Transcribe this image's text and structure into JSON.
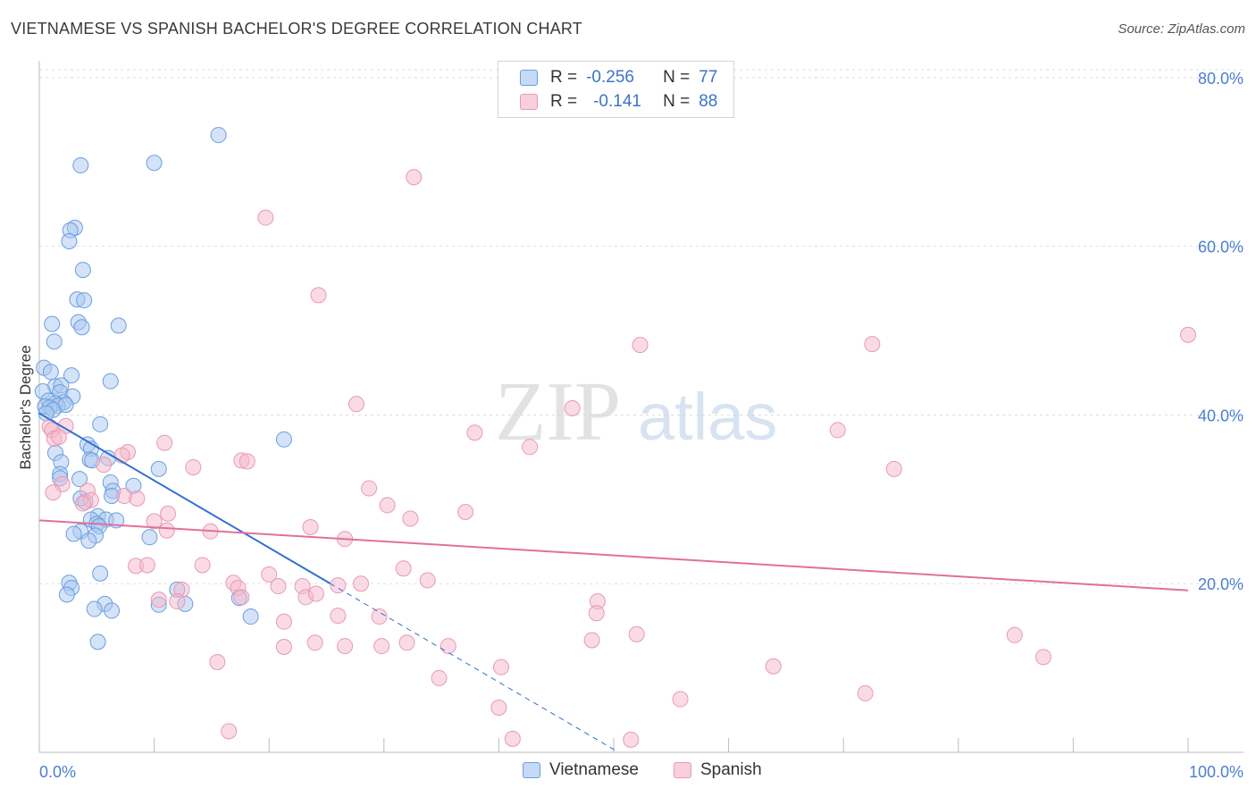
{
  "header": {
    "title": "VIETNAMESE VS SPANISH BACHELOR'S DEGREE CORRELATION CHART",
    "source": "Source: ZipAtlas.com"
  },
  "watermark": {
    "zip": "ZIP",
    "atlas": "atlas"
  },
  "legend": {
    "rows": [
      {
        "r_label": "R =",
        "r_value": "-0.256",
        "n_label": "N =",
        "n_value": "77"
      },
      {
        "r_label": "R =",
        "r_value": "-0.141",
        "n_label": "N =",
        "n_value": "88"
      }
    ]
  },
  "bottom_legend": {
    "vietnamese": "Vietnamese",
    "spanish": "Spanish"
  },
  "colors": {
    "vietnamese_fill": "#a9c8f0",
    "vietnamese_stroke": "#6b9ee0",
    "vietnamese_line": "#2e6fd1",
    "spanish_fill": "#f5b8cc",
    "spanish_stroke": "#e899b3",
    "spanish_line": "#e0709a",
    "tick_text": "#4a7fd0",
    "grid": "#dddddd"
  },
  "chart_data": {
    "type": "scatter",
    "title": "VIETNAMESE VS SPANISH BACHELOR'S DEGREE CORRELATION CHART",
    "xlabel": "",
    "ylabel": "Bachelor's Degree",
    "xlim": [
      0,
      100
    ],
    "ylim": [
      0,
      82
    ],
    "x_tick_labels": [
      "0.0%",
      "100.0%"
    ],
    "y_ticks": [
      20,
      40,
      60,
      80
    ],
    "y_tick_labels": [
      "20.0%",
      "40.0%",
      "60.0%",
      "80.0%"
    ],
    "series": [
      {
        "name": "Vietnamese",
        "r": -0.256,
        "n": 77,
        "trend": {
          "x0": 0,
          "y0": 40.2,
          "x_solid_end": 25.3,
          "x1": 100,
          "y1": -39.5
        },
        "points": [
          [
            15.6,
            73.2
          ],
          [
            10.0,
            69.9
          ],
          [
            3.6,
            69.6
          ],
          [
            3.1,
            62.2
          ],
          [
            2.7,
            61.9
          ],
          [
            2.6,
            60.6
          ],
          [
            3.8,
            57.2
          ],
          [
            3.3,
            53.7
          ],
          [
            3.9,
            53.6
          ],
          [
            3.4,
            51.0
          ],
          [
            1.1,
            50.8
          ],
          [
            3.7,
            50.4
          ],
          [
            6.9,
            50.6
          ],
          [
            1.3,
            48.7
          ],
          [
            0.4,
            45.6
          ],
          [
            1.0,
            45.1
          ],
          [
            2.8,
            44.7
          ],
          [
            1.4,
            43.4
          ],
          [
            1.9,
            43.5
          ],
          [
            6.2,
            44.0
          ],
          [
            0.3,
            42.8
          ],
          [
            1.8,
            42.7
          ],
          [
            2.9,
            42.2
          ],
          [
            0.8,
            41.7
          ],
          [
            2.1,
            41.5
          ],
          [
            1.4,
            41.4
          ],
          [
            1.6,
            41.1
          ],
          [
            2.3,
            41.2
          ],
          [
            0.5,
            41.0
          ],
          [
            0.9,
            40.9
          ],
          [
            1.2,
            40.6
          ],
          [
            0.6,
            40.2
          ],
          [
            5.3,
            38.9
          ],
          [
            21.3,
            37.1
          ],
          [
            4.2,
            36.5
          ],
          [
            4.5,
            36.0
          ],
          [
            1.4,
            35.5
          ],
          [
            6.0,
            34.9
          ],
          [
            4.4,
            34.7
          ],
          [
            4.6,
            34.6
          ],
          [
            1.9,
            34.4
          ],
          [
            10.4,
            33.6
          ],
          [
            1.8,
            33.0
          ],
          [
            1.8,
            32.5
          ],
          [
            6.2,
            32.0
          ],
          [
            3.5,
            32.4
          ],
          [
            8.2,
            31.6
          ],
          [
            6.4,
            31.0
          ],
          [
            6.3,
            30.4
          ],
          [
            3.6,
            30.1
          ],
          [
            4.0,
            29.7
          ],
          [
            5.1,
            28.0
          ],
          [
            4.5,
            27.6
          ],
          [
            5.8,
            27.6
          ],
          [
            6.7,
            27.5
          ],
          [
            5.0,
            27.1
          ],
          [
            5.2,
            26.8
          ],
          [
            3.6,
            26.2
          ],
          [
            3.0,
            25.9
          ],
          [
            4.9,
            25.7
          ],
          [
            9.6,
            25.5
          ],
          [
            4.3,
            25.1
          ],
          [
            5.3,
            21.2
          ],
          [
            2.6,
            20.1
          ],
          [
            2.8,
            19.5
          ],
          [
            12.0,
            19.3
          ],
          [
            2.4,
            18.7
          ],
          [
            17.4,
            18.3
          ],
          [
            5.7,
            17.6
          ],
          [
            10.4,
            17.5
          ],
          [
            12.7,
            17.6
          ],
          [
            4.8,
            17.0
          ],
          [
            6.3,
            16.8
          ],
          [
            18.4,
            16.1
          ],
          [
            5.1,
            13.1
          ]
        ]
      },
      {
        "name": "Spanish",
        "r": -0.141,
        "n": 88,
        "trend": {
          "x0": 0,
          "y0": 27.5,
          "x1": 100,
          "y1": 19.2
        },
        "points": [
          [
            32.6,
            68.2
          ],
          [
            19.7,
            63.4
          ],
          [
            24.3,
            54.2
          ],
          [
            100.0,
            49.5
          ],
          [
            52.3,
            48.3
          ],
          [
            72.5,
            48.4
          ],
          [
            27.6,
            41.3
          ],
          [
            46.4,
            40.8
          ],
          [
            0.9,
            38.6
          ],
          [
            2.3,
            38.7
          ],
          [
            1.1,
            38.2
          ],
          [
            37.9,
            37.9
          ],
          [
            69.5,
            38.2
          ],
          [
            1.3,
            37.2
          ],
          [
            1.7,
            37.4
          ],
          [
            10.9,
            36.7
          ],
          [
            42.7,
            36.2
          ],
          [
            7.7,
            35.6
          ],
          [
            7.2,
            35.2
          ],
          [
            17.6,
            34.6
          ],
          [
            18.1,
            34.5
          ],
          [
            13.4,
            33.8
          ],
          [
            5.6,
            34.1
          ],
          [
            74.4,
            33.6
          ],
          [
            2.0,
            31.8
          ],
          [
            28.7,
            31.3
          ],
          [
            4.2,
            31.0
          ],
          [
            1.2,
            30.8
          ],
          [
            7.4,
            30.4
          ],
          [
            4.5,
            29.9
          ],
          [
            8.5,
            30.1
          ],
          [
            30.3,
            29.3
          ],
          [
            37.1,
            28.5
          ],
          [
            3.8,
            29.5
          ],
          [
            11.2,
            28.3
          ],
          [
            32.3,
            27.7
          ],
          [
            10.0,
            27.4
          ],
          [
            23.6,
            26.7
          ],
          [
            11.1,
            26.3
          ],
          [
            14.9,
            26.2
          ],
          [
            26.6,
            25.3
          ],
          [
            8.4,
            22.1
          ],
          [
            9.4,
            22.2
          ],
          [
            14.2,
            22.2
          ],
          [
            31.7,
            21.8
          ],
          [
            20.0,
            21.1
          ],
          [
            33.8,
            20.4
          ],
          [
            16.9,
            20.1
          ],
          [
            17.3,
            19.5
          ],
          [
            28.0,
            20.0
          ],
          [
            20.8,
            19.7
          ],
          [
            22.9,
            19.7
          ],
          [
            10.4,
            18.1
          ],
          [
            12.4,
            19.3
          ],
          [
            17.6,
            18.4
          ],
          [
            23.2,
            18.4
          ],
          [
            12.0,
            17.9
          ],
          [
            24.1,
            18.8
          ],
          [
            26.0,
            19.8
          ],
          [
            48.6,
            17.9
          ],
          [
            48.5,
            16.5
          ],
          [
            26.0,
            16.2
          ],
          [
            29.6,
            16.1
          ],
          [
            21.3,
            15.5
          ],
          [
            24.0,
            13.0
          ],
          [
            26.6,
            12.6
          ],
          [
            29.8,
            12.6
          ],
          [
            32.0,
            13.0
          ],
          [
            35.6,
            12.6
          ],
          [
            21.3,
            12.5
          ],
          [
            48.1,
            13.3
          ],
          [
            52.0,
            14.0
          ],
          [
            84.9,
            13.9
          ],
          [
            15.5,
            10.7
          ],
          [
            40.2,
            10.1
          ],
          [
            63.9,
            10.2
          ],
          [
            87.4,
            11.3
          ],
          [
            34.8,
            8.8
          ],
          [
            71.9,
            7.0
          ],
          [
            55.8,
            6.3
          ],
          [
            40.0,
            5.3
          ],
          [
            16.5,
            2.5
          ],
          [
            41.2,
            1.6
          ],
          [
            51.5,
            1.5
          ]
        ]
      }
    ]
  }
}
